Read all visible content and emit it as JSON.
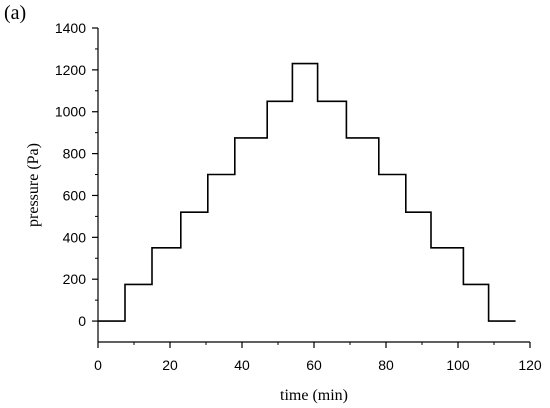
{
  "panel_label": "(a)",
  "chart_data": {
    "type": "line",
    "step": true,
    "xlabel": "time (min)",
    "ylabel": "pressure (Pa)",
    "xlim": [
      0,
      120
    ],
    "ylim": [
      -100,
      1400
    ],
    "xticks": [
      0,
      20,
      40,
      60,
      80,
      100,
      120
    ],
    "yticks": [
      0,
      200,
      400,
      600,
      800,
      1000,
      1200,
      1400
    ],
    "grid": false,
    "series": [
      {
        "x": [
          0,
          7.5,
          7.5,
          15,
          15,
          23,
          23,
          30.5,
          30.5,
          38,
          38,
          47,
          47,
          54,
          54,
          61,
          61,
          69,
          69,
          78,
          78,
          85.5,
          85.5,
          92.5,
          92.5,
          101.5,
          101.5,
          108.5,
          108.5,
          116
        ],
        "y": [
          0,
          0,
          175,
          175,
          350,
          350,
          520,
          520,
          700,
          700,
          875,
          875,
          1050,
          1050,
          1230,
          1230,
          1050,
          1050,
          875,
          875,
          700,
          700,
          520,
          520,
          350,
          350,
          175,
          175,
          0,
          0
        ]
      }
    ]
  }
}
